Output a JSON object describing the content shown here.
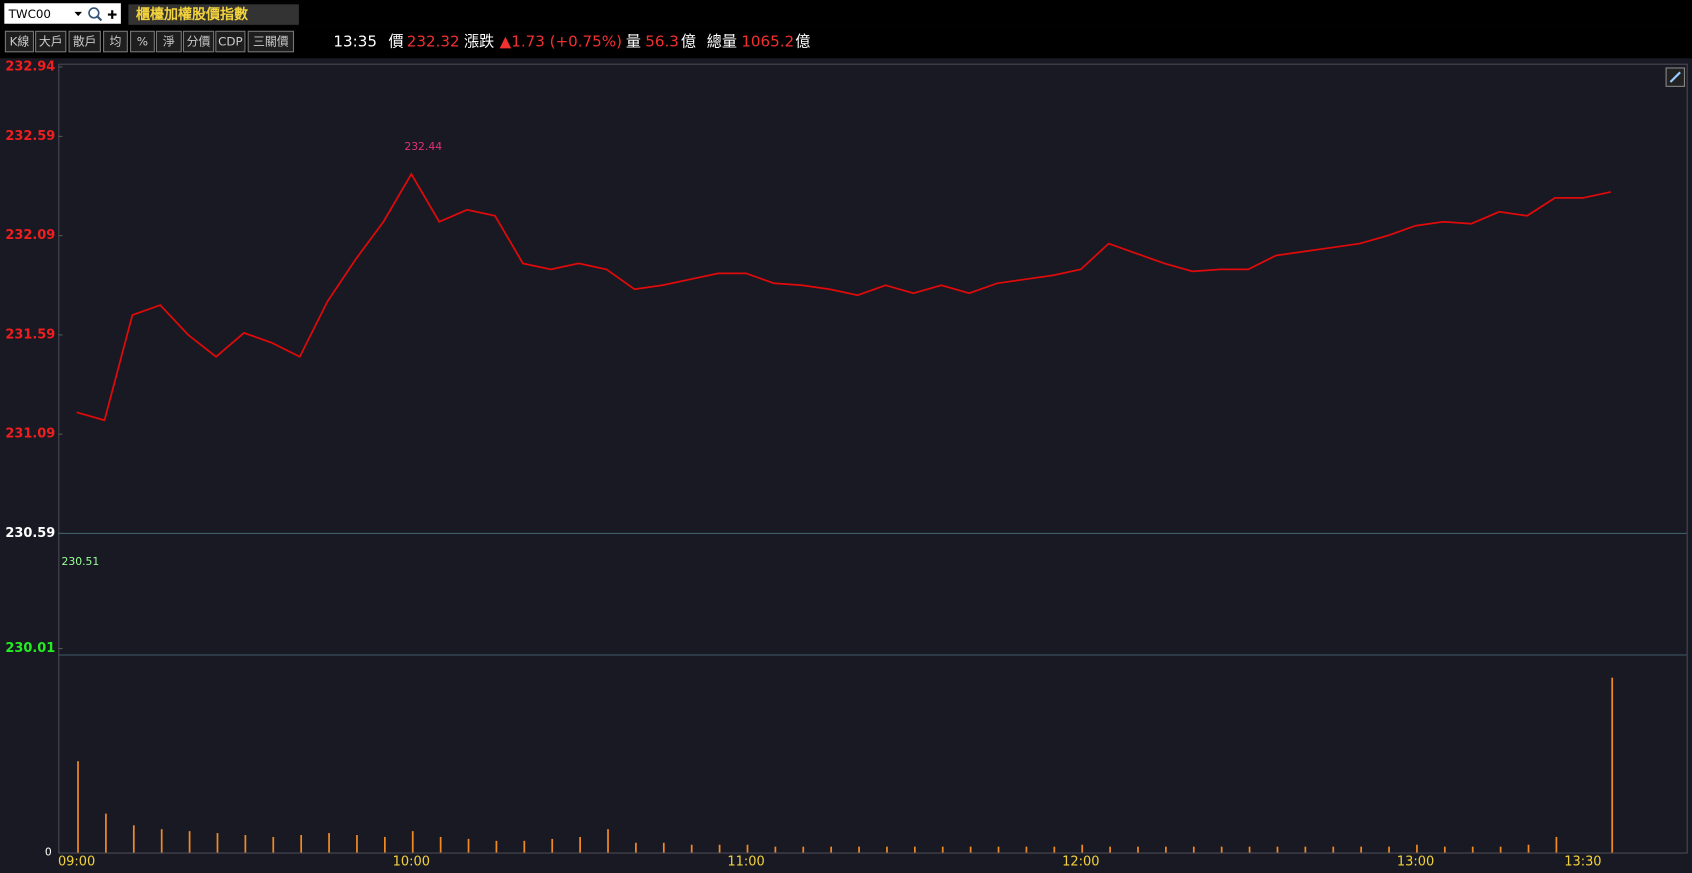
{
  "header": {
    "symbol": "TWC00",
    "title": "櫃檯加權股價指數",
    "buttons": [
      "K線",
      "大戶",
      "散戶",
      "均",
      "%",
      "淨",
      "分價",
      "CDP",
      "三關價"
    ]
  },
  "quote": {
    "time": "13:35",
    "price_label": "價",
    "price": "232.32",
    "change_label": "漲跌",
    "change": "▲1.73 (+0.75%)",
    "volume_label": "量",
    "volume": "56.3",
    "volume_unit": "億",
    "total_label": "總量",
    "total": "1065.2",
    "total_unit": "億"
  },
  "chart_data": [
    {
      "type": "line",
      "color": "#e00a0a",
      "x": [
        "09:00",
        "09:05",
        "09:10",
        "09:15",
        "09:20",
        "09:25",
        "09:30",
        "09:35",
        "09:40",
        "09:45",
        "09:50",
        "09:55",
        "10:00",
        "10:05",
        "10:10",
        "10:15",
        "10:20",
        "10:25",
        "10:30",
        "10:35",
        "10:40",
        "10:45",
        "10:50",
        "10:55",
        "11:00",
        "11:05",
        "11:10",
        "11:15",
        "11:20",
        "11:25",
        "11:30",
        "11:35",
        "11:40",
        "11:45",
        "11:50",
        "11:55",
        "12:00",
        "12:05",
        "12:10",
        "12:15",
        "12:20",
        "12:25",
        "12:30",
        "12:35",
        "12:40",
        "12:45",
        "12:50",
        "12:55",
        "13:00",
        "13:05",
        "13:10",
        "13:15",
        "13:20",
        "13:25",
        "13:30",
        "13:35"
      ],
      "values": [
        231.2,
        231.16,
        231.69,
        231.74,
        231.59,
        231.48,
        231.6,
        231.55,
        231.48,
        231.76,
        231.97,
        232.16,
        232.4,
        232.16,
        232.22,
        232.19,
        231.95,
        231.92,
        231.95,
        231.92,
        231.82,
        231.84,
        231.87,
        231.9,
        231.9,
        231.85,
        231.84,
        231.82,
        231.79,
        231.84,
        231.8,
        231.84,
        231.8,
        231.85,
        231.87,
        231.89,
        231.92,
        232.05,
        232.0,
        231.95,
        231.91,
        231.92,
        231.92,
        231.99,
        232.01,
        232.03,
        232.05,
        232.09,
        232.14,
        232.16,
        232.15,
        232.21,
        232.19,
        232.28,
        232.28,
        232.31
      ],
      "ylim": [
        230.01,
        232.94
      ],
      "yticks": [
        232.94,
        232.59,
        232.09,
        231.59,
        231.09,
        230.59,
        230.01
      ],
      "reference_line": 230.59,
      "high_label": "232.44",
      "low_label": "230.51"
    },
    {
      "type": "bar",
      "color": "#f08a24",
      "x": [
        "09:00",
        "09:05",
        "09:10",
        "09:15",
        "09:20",
        "09:25",
        "09:30",
        "09:35",
        "09:40",
        "09:45",
        "09:50",
        "09:55",
        "10:00",
        "10:05",
        "10:10",
        "10:15",
        "10:20",
        "10:25",
        "10:30",
        "10:35",
        "10:40",
        "10:45",
        "10:50",
        "10:55",
        "11:00",
        "11:05",
        "11:10",
        "11:15",
        "11:20",
        "11:25",
        "11:30",
        "11:35",
        "11:40",
        "11:45",
        "11:50",
        "11:55",
        "12:00",
        "12:05",
        "12:10",
        "12:15",
        "12:20",
        "12:25",
        "12:30",
        "12:35",
        "12:40",
        "12:45",
        "12:50",
        "12:55",
        "13:00",
        "13:05",
        "13:10",
        "13:15",
        "13:20",
        "13:25",
        "13:30",
        "13:35"
      ],
      "values": [
        47,
        20,
        14,
        12,
        11,
        10,
        9,
        8,
        9,
        10,
        9,
        8,
        11,
        8,
        7,
        6,
        6,
        7,
        8,
        12,
        5,
        5,
        4,
        4,
        4,
        3,
        3,
        3,
        3,
        3,
        3,
        3,
        3,
        3,
        3,
        3,
        4,
        3,
        3,
        3,
        3,
        3,
        3,
        3,
        3,
        3,
        3,
        3,
        4,
        3,
        3,
        3,
        4,
        8,
        0,
        90
      ],
      "ylim": [
        0,
        100
      ],
      "yticks": [
        0
      ],
      "xticks": [
        "09:00",
        "10:00",
        "11:00",
        "12:00",
        "13:00",
        "13:30"
      ]
    }
  ]
}
